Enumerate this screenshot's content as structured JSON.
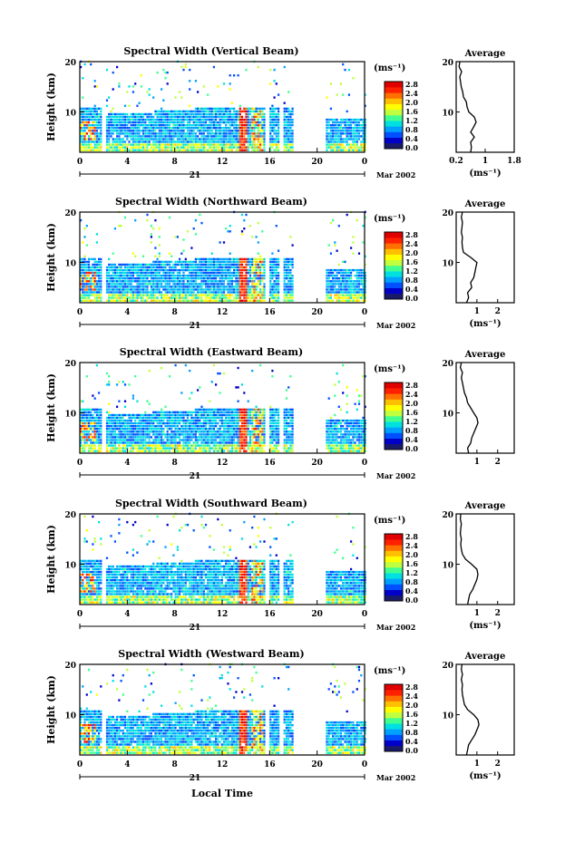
{
  "figure": {
    "x_axis_title": "Local Time",
    "date_left": "21",
    "date_right": "Mar 2002",
    "colorbar_unit": "(ms⁻¹)",
    "colorbar_ticks": [
      "2.8",
      "2.4",
      "2.0",
      "1.6",
      "1.2",
      "0.8",
      "0.4",
      "0.0"
    ],
    "colormap": [
      "#1a1a6b",
      "#0000c8",
      "#0050ff",
      "#00a0ff",
      "#00e0e0",
      "#40ff90",
      "#c0ff40",
      "#ffff00",
      "#ffc000",
      "#ff7000",
      "#ff2000",
      "#e00000"
    ]
  },
  "chart_data": [
    {
      "type": "heatmap",
      "title": "Spectral Width (Vertical Beam)",
      "ylabel": "Height (km)",
      "xlabel": "",
      "x_ticks": [
        "0",
        "4",
        "8",
        "12",
        "16",
        "20",
        "0"
      ],
      "y_ticks": [
        "20",
        "10"
      ],
      "xlim": [
        0,
        24
      ],
      "ylim": [
        2,
        20
      ],
      "z_range": [
        0.0,
        3.0
      ],
      "profile": {
        "title": "Average",
        "xlabel": "(ms⁻¹)",
        "x_ticks": [
          "0.2",
          "1",
          "1.8"
        ],
        "xlim": [
          0.2,
          1.8
        ],
        "y_ticks": [
          "20",
          "10"
        ],
        "ylim": [
          2,
          20
        ],
        "points": [
          [
            0.6,
            2
          ],
          [
            0.62,
            3
          ],
          [
            0.6,
            4
          ],
          [
            0.7,
            5
          ],
          [
            0.6,
            6
          ],
          [
            0.68,
            7
          ],
          [
            0.75,
            8
          ],
          [
            0.7,
            9
          ],
          [
            0.55,
            10
          ],
          [
            0.5,
            11
          ],
          [
            0.48,
            12
          ],
          [
            0.4,
            13
          ],
          [
            0.38,
            14
          ],
          [
            0.34,
            15
          ],
          [
            0.32,
            16
          ],
          [
            0.3,
            17
          ],
          [
            0.35,
            18
          ],
          [
            0.28,
            19
          ],
          [
            0.3,
            20
          ]
        ]
      }
    },
    {
      "type": "heatmap",
      "title": "Spectral Width (Northward Beam)",
      "ylabel": "Height (km)",
      "xlabel": "",
      "x_ticks": [
        "0",
        "4",
        "8",
        "12",
        "16",
        "20",
        "0"
      ],
      "y_ticks": [
        "20",
        "10"
      ],
      "xlim": [
        0,
        24
      ],
      "ylim": [
        2,
        20
      ],
      "z_range": [
        0.0,
        3.0
      ],
      "profile": {
        "title": "Average",
        "xlabel": "(ms⁻¹)",
        "x_ticks": [
          "1",
          "2"
        ],
        "xlim": [
          0,
          2.8
        ],
        "y_ticks": [
          "20",
          "10"
        ],
        "ylim": [
          2,
          20
        ],
        "points": [
          [
            0.5,
            2
          ],
          [
            0.6,
            3
          ],
          [
            0.55,
            4
          ],
          [
            0.75,
            5
          ],
          [
            0.7,
            6
          ],
          [
            0.85,
            7
          ],
          [
            0.9,
            8
          ],
          [
            0.95,
            9
          ],
          [
            1.0,
            10
          ],
          [
            0.7,
            11
          ],
          [
            0.35,
            12
          ],
          [
            0.3,
            13
          ],
          [
            0.28,
            14
          ],
          [
            0.3,
            15
          ],
          [
            0.25,
            16
          ],
          [
            0.28,
            17
          ],
          [
            0.3,
            18
          ],
          [
            0.25,
            19
          ],
          [
            0.3,
            20
          ]
        ]
      }
    },
    {
      "type": "heatmap",
      "title": "Spectral Width (Eastward Beam)",
      "ylabel": "Height (km)",
      "xlabel": "",
      "x_ticks": [
        "0",
        "4",
        "8",
        "12",
        "16",
        "20",
        "0"
      ],
      "y_ticks": [
        "20",
        "10"
      ],
      "xlim": [
        0,
        24
      ],
      "ylim": [
        2,
        20
      ],
      "z_range": [
        0.0,
        3.0
      ],
      "profile": {
        "title": "Average",
        "xlabel": "",
        "x_ticks": [
          "1",
          "2"
        ],
        "xlim": [
          0,
          2.8
        ],
        "y_ticks": [
          "20",
          "10"
        ],
        "ylim": [
          2,
          20
        ],
        "points": [
          [
            0.6,
            2
          ],
          [
            0.55,
            3
          ],
          [
            0.7,
            4
          ],
          [
            0.75,
            5
          ],
          [
            0.85,
            6
          ],
          [
            0.95,
            7
          ],
          [
            1.05,
            8
          ],
          [
            1.0,
            9
          ],
          [
            0.85,
            10
          ],
          [
            0.7,
            11
          ],
          [
            0.55,
            12
          ],
          [
            0.5,
            13
          ],
          [
            0.4,
            14
          ],
          [
            0.35,
            15
          ],
          [
            0.3,
            16
          ],
          [
            0.25,
            17
          ],
          [
            0.3,
            18
          ],
          [
            0.2,
            19
          ],
          [
            0.25,
            20
          ]
        ]
      }
    },
    {
      "type": "heatmap",
      "title": "Spectral Width (Southward Beam)",
      "ylabel": "Height (km)",
      "xlabel": "",
      "x_ticks": [
        "0",
        "4",
        "8",
        "12",
        "16",
        "20",
        "0"
      ],
      "y_ticks": [
        "20",
        "10"
      ],
      "xlim": [
        0,
        24
      ],
      "ylim": [
        2,
        20
      ],
      "z_range": [
        0.0,
        3.0
      ],
      "profile": {
        "title": "Average",
        "xlabel": "(ms⁻¹)",
        "x_ticks": [
          "1",
          "2"
        ],
        "xlim": [
          0,
          2.8
        ],
        "y_ticks": [
          "20",
          "10"
        ],
        "ylim": [
          2,
          20
        ],
        "points": [
          [
            0.55,
            2
          ],
          [
            0.6,
            3
          ],
          [
            0.65,
            4
          ],
          [
            0.8,
            5
          ],
          [
            0.9,
            6
          ],
          [
            1.0,
            7
          ],
          [
            1.05,
            8
          ],
          [
            1.0,
            9
          ],
          [
            0.75,
            10
          ],
          [
            0.45,
            11
          ],
          [
            0.3,
            12
          ],
          [
            0.25,
            13
          ],
          [
            0.22,
            14
          ],
          [
            0.25,
            15
          ],
          [
            0.2,
            16
          ],
          [
            0.22,
            17
          ],
          [
            0.25,
            18
          ],
          [
            0.2,
            19
          ],
          [
            0.22,
            20
          ]
        ]
      }
    },
    {
      "type": "heatmap",
      "title": "Spectral Width (Westward Beam)",
      "ylabel": "Height (km)",
      "xlabel": "",
      "x_ticks": [
        "0",
        "4",
        "8",
        "12",
        "16",
        "20",
        "0"
      ],
      "y_ticks": [
        "20",
        "10"
      ],
      "xlim": [
        0,
        24
      ],
      "ylim": [
        2,
        20
      ],
      "z_range": [
        0.0,
        3.0
      ],
      "profile": {
        "title": "Average",
        "xlabel": "(ms⁻¹)",
        "x_ticks": [
          "1",
          "2"
        ],
        "xlim": [
          0,
          2.8
        ],
        "y_ticks": [
          "20",
          "10"
        ],
        "ylim": [
          2,
          20
        ],
        "points": [
          [
            0.5,
            2
          ],
          [
            0.55,
            3
          ],
          [
            0.6,
            4
          ],
          [
            0.75,
            5
          ],
          [
            0.9,
            6
          ],
          [
            1.0,
            7
          ],
          [
            1.1,
            8
          ],
          [
            1.05,
            9
          ],
          [
            0.85,
            10
          ],
          [
            0.55,
            11
          ],
          [
            0.4,
            12
          ],
          [
            0.35,
            13
          ],
          [
            0.3,
            14
          ],
          [
            0.28,
            15
          ],
          [
            0.3,
            16
          ],
          [
            0.25,
            17
          ],
          [
            0.3,
            18
          ],
          [
            0.25,
            19
          ],
          [
            0.28,
            20
          ]
        ]
      }
    }
  ]
}
